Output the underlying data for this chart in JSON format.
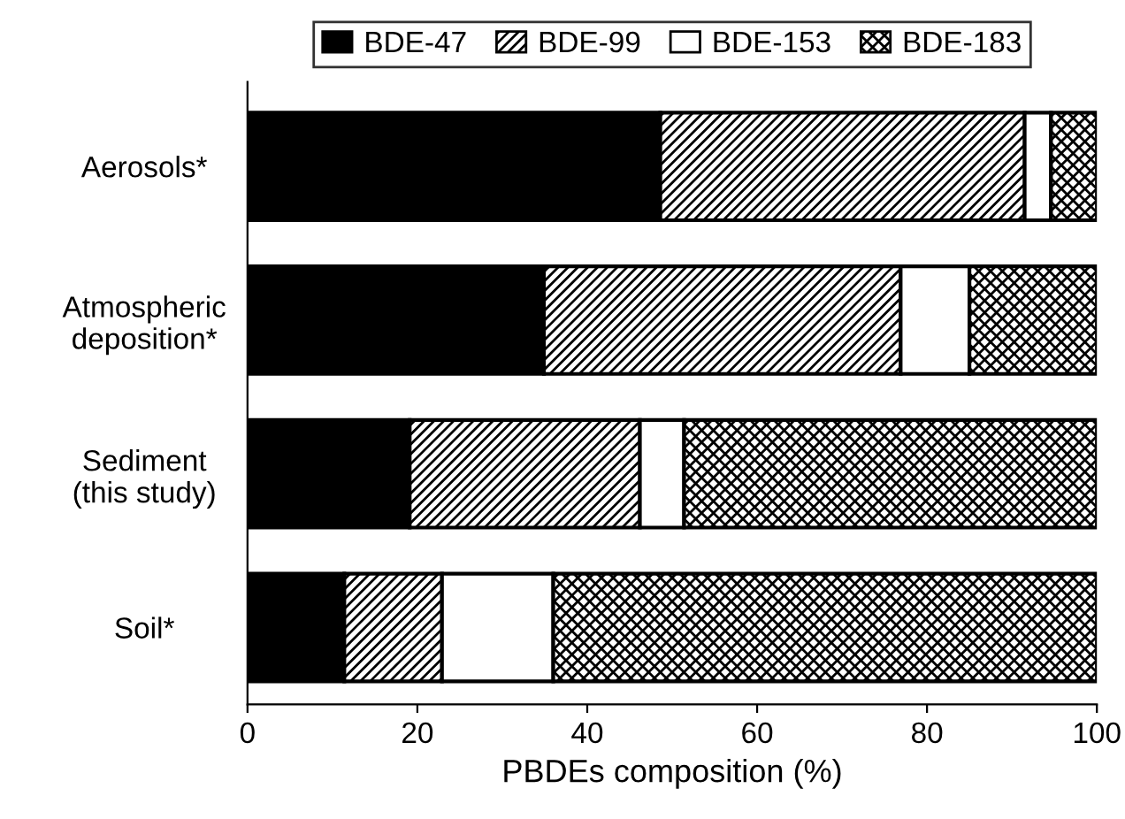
{
  "chart_data": {
    "type": "bar",
    "orientation": "horizontal",
    "stacked": true,
    "categories": [
      "Aerosols*",
      "Atmospheric\ndeposition*",
      "Sediment\n(this study)",
      "Soil*"
    ],
    "series": [
      {
        "name": "BDE-47",
        "color": "#000000",
        "values": [
          48.6,
          34.9,
          19.1,
          11.4
        ]
      },
      {
        "name": "BDE-99",
        "color": "#000000",
        "values": [
          42.9,
          42.0,
          27.1,
          11.5
        ]
      },
      {
        "name": "BDE-153",
        "color": "#ffffff",
        "values": [
          3.1,
          8.1,
          5.2,
          13.1
        ]
      },
      {
        "name": "BDE-183",
        "color": "#000000",
        "values": [
          5.4,
          15.0,
          48.6,
          64.0
        ]
      }
    ],
    "xlabel": "PBDEs composition (%)",
    "xlim": [
      0,
      100
    ],
    "xticks": [
      0,
      20,
      40,
      60,
      80,
      100
    ],
    "grid": false,
    "legend": "top"
  }
}
